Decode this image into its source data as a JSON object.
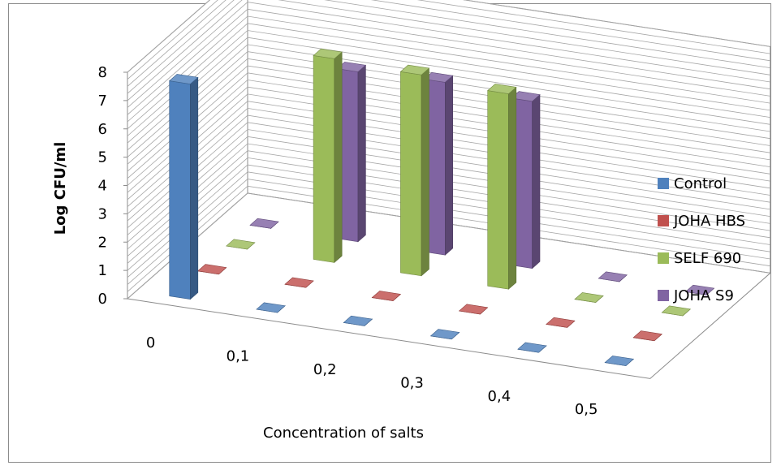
{
  "chart_data": {
    "type": "bar",
    "title": "",
    "xlabel": "Concentration of salts",
    "ylabel": "Log CFU/ml",
    "ylim": [
      0,
      8
    ],
    "yticks": [
      "0",
      "1",
      "2",
      "3",
      "4",
      "5",
      "6",
      "7",
      "8"
    ],
    "categories": [
      "0",
      "0,1",
      "0,2",
      "0,3",
      "0,4",
      "0,5"
    ],
    "series": [
      {
        "name": "Control",
        "color": "#4f81bd",
        "values": [
          7.6,
          0,
          0,
          0,
          0,
          0
        ]
      },
      {
        "name": "JOHA HBS",
        "color": "#c0504d",
        "values": [
          0,
          0,
          0,
          0,
          0,
          0
        ]
      },
      {
        "name": "SELF 690",
        "color": "#9bbb59",
        "values": [
          0,
          7.2,
          7.1,
          6.9,
          0,
          0
        ]
      },
      {
        "name": "JOHA S9",
        "color": "#8064a2",
        "values": [
          0,
          6.0,
          6.1,
          5.9,
          0,
          0
        ]
      }
    ],
    "grid": true,
    "legend_position": "right"
  }
}
